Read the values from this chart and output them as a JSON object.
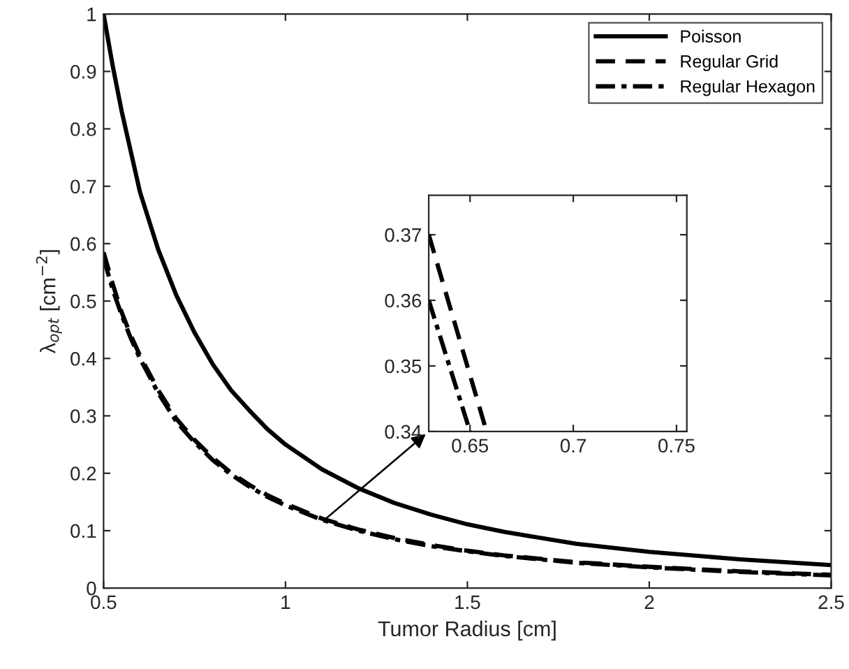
{
  "chart_data": [
    {
      "type": "line",
      "xlabel": "Tumor Radius [cm]",
      "ylabel": "λ$_{opt}$ [cm$^{−2}$]",
      "xlim": [
        0.5,
        2.5
      ],
      "ylim": [
        0,
        1
      ],
      "xticks": [
        0.5,
        1,
        1.5,
        2,
        2.5
      ],
      "yticks": [
        0,
        0.1,
        0.2,
        0.3,
        0.4,
        0.5,
        0.6,
        0.7,
        0.8,
        0.9,
        1
      ],
      "legend": "top right",
      "grid": false,
      "x": [
        0.5,
        0.525,
        0.55,
        0.575,
        0.6,
        0.65,
        0.7,
        0.75,
        0.8,
        0.85,
        0.9,
        0.95,
        1.0,
        1.1,
        1.2,
        1.3,
        1.4,
        1.5,
        1.6,
        1.8,
        2.0,
        2.25,
        2.5
      ],
      "series": [
        {
          "name": "Poisson",
          "color": "#000000",
          "line_style": "solid",
          "values": [
            1.0,
            0.91,
            0.83,
            0.76,
            0.69,
            0.59,
            0.51,
            0.445,
            0.39,
            0.345,
            0.31,
            0.277,
            0.25,
            0.207,
            0.174,
            0.148,
            0.128,
            0.111,
            0.098,
            0.077,
            0.063,
            0.05,
            0.04
          ]
        },
        {
          "name": "Regular Grid",
          "color": "#000000",
          "line_style": "dashed",
          "values": [
            0.585,
            0.53,
            0.48,
            0.44,
            0.405,
            0.345,
            0.295,
            0.258,
            0.227,
            0.201,
            0.18,
            0.162,
            0.147,
            0.121,
            0.102,
            0.087,
            0.075,
            0.065,
            0.057,
            0.045,
            0.037,
            0.029,
            0.023
          ]
        },
        {
          "name": "Regular Hexagon",
          "color": "#000000",
          "line_style": "dashdot",
          "values": [
            0.575,
            0.52,
            0.475,
            0.435,
            0.4,
            0.34,
            0.29,
            0.254,
            0.223,
            0.198,
            0.177,
            0.159,
            0.144,
            0.119,
            0.1,
            0.085,
            0.073,
            0.064,
            0.056,
            0.044,
            0.036,
            0.028,
            0.022
          ]
        }
      ]
    },
    {
      "type": "line",
      "xlim": [
        0.63,
        0.755
      ],
      "ylim": [
        0.34,
        0.376
      ],
      "xticks": [
        0.65,
        0.7,
        0.75
      ],
      "yticks": [
        0.34,
        0.35,
        0.36,
        0.37
      ],
      "grid": false,
      "series": [
        {
          "color": "#000000",
          "line_style": "dashed",
          "x": [
            0.63,
            0.658
          ],
          "values": [
            0.37,
            0.34
          ]
        },
        {
          "color": "#000000",
          "line_style": "dashdot",
          "x": [
            0.63,
            0.65
          ],
          "values": [
            0.36,
            0.34
          ]
        }
      ]
    }
  ]
}
